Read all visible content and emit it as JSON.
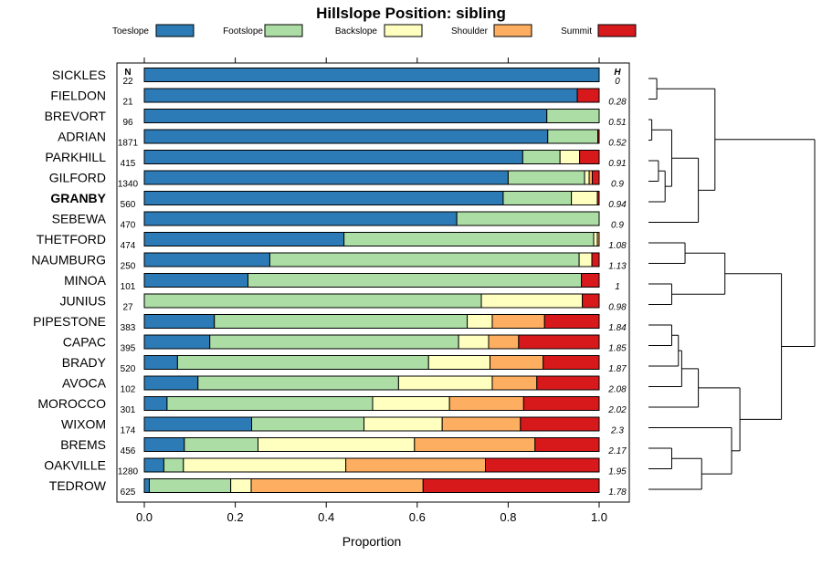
{
  "chart_data": {
    "type": "stacked-bar",
    "title": "Hillslope Position: sibling",
    "xlabel": "Proportion",
    "xlim": [
      0,
      1
    ],
    "xticks": [
      "0.0",
      "0.2",
      "0.4",
      "0.6",
      "0.8",
      "1.0"
    ],
    "n_header": "N",
    "h_header": "H",
    "legend": [
      {
        "name": "Toeslope",
        "color": "#2C7BB6"
      },
      {
        "name": "Footslope",
        "color": "#ABDDA4"
      },
      {
        "name": "Backslope",
        "color": "#FFFFBF"
      },
      {
        "name": "Shoulder",
        "color": "#FDAE61"
      },
      {
        "name": "Summit",
        "color": "#D7191C"
      }
    ],
    "rows": [
      {
        "name": "SICKLES",
        "n": "22",
        "h": "0",
        "bold": false,
        "values": [
          1.0,
          0.0,
          0.0,
          0.0,
          0.0
        ]
      },
      {
        "name": "FIELDON",
        "n": "21",
        "h": "0.28",
        "bold": false,
        "values": [
          0.952,
          0.0,
          0.0,
          0.0,
          0.048
        ]
      },
      {
        "name": "BREVORT",
        "n": "96",
        "h": "0.51",
        "bold": false,
        "values": [
          0.885,
          0.115,
          0.0,
          0.0,
          0.0
        ]
      },
      {
        "name": "ADRIAN",
        "n": "1871",
        "h": "0.52",
        "bold": false,
        "values": [
          0.887,
          0.11,
          0.0,
          0.0,
          0.003
        ]
      },
      {
        "name": "PARKHILL",
        "n": "415",
        "h": "0.91",
        "bold": false,
        "values": [
          0.832,
          0.082,
          0.043,
          0.0,
          0.043
        ]
      },
      {
        "name": "GILFORD",
        "n": "1340",
        "h": "0.9",
        "bold": false,
        "values": [
          0.8,
          0.168,
          0.01,
          0.007,
          0.015
        ]
      },
      {
        "name": "GRANBY",
        "n": "560",
        "h": "0.94",
        "bold": true,
        "values": [
          0.789,
          0.15,
          0.057,
          0.0,
          0.004
        ]
      },
      {
        "name": "SEBEWA",
        "n": "470",
        "h": "0.9",
        "bold": false,
        "values": [
          0.687,
          0.313,
          0.0,
          0.0,
          0.0
        ]
      },
      {
        "name": "THETFORD",
        "n": "474",
        "h": "1.08",
        "bold": false,
        "values": [
          0.439,
          0.549,
          0.008,
          0.004,
          0.0
        ]
      },
      {
        "name": "NAUMBURG",
        "n": "250",
        "h": "1.13",
        "bold": false,
        "values": [
          0.276,
          0.68,
          0.028,
          0.0,
          0.016
        ]
      },
      {
        "name": "MINOA",
        "n": "101",
        "h": "1",
        "bold": false,
        "values": [
          0.228,
          0.733,
          0.0,
          0.0,
          0.039
        ]
      },
      {
        "name": "JUNIUS",
        "n": "27",
        "h": "0.98",
        "bold": false,
        "values": [
          0.0,
          0.741,
          0.222,
          0.0,
          0.037
        ]
      },
      {
        "name": "PIPESTONE",
        "n": "383",
        "h": "1.84",
        "bold": false,
        "values": [
          0.154,
          0.556,
          0.055,
          0.115,
          0.12
        ]
      },
      {
        "name": "CAPAC",
        "n": "395",
        "h": "1.85",
        "bold": false,
        "values": [
          0.144,
          0.547,
          0.066,
          0.066,
          0.177
        ]
      },
      {
        "name": "BRADY",
        "n": "520",
        "h": "1.87",
        "bold": false,
        "values": [
          0.073,
          0.552,
          0.135,
          0.117,
          0.123
        ]
      },
      {
        "name": "AVOCA",
        "n": "102",
        "h": "2.08",
        "bold": false,
        "values": [
          0.118,
          0.441,
          0.206,
          0.098,
          0.137
        ]
      },
      {
        "name": "MOROCCO",
        "n": "301",
        "h": "2.02",
        "bold": false,
        "values": [
          0.05,
          0.452,
          0.169,
          0.163,
          0.166
        ]
      },
      {
        "name": "WIXOM",
        "n": "174",
        "h": "2.3",
        "bold": false,
        "values": [
          0.236,
          0.247,
          0.172,
          0.172,
          0.173
        ]
      },
      {
        "name": "BREMS",
        "n": "456",
        "h": "2.17",
        "bold": false,
        "values": [
          0.088,
          0.162,
          0.344,
          0.265,
          0.141
        ]
      },
      {
        "name": "OAKVILLE",
        "n": "1280",
        "h": "1.95",
        "bold": false,
        "values": [
          0.043,
          0.043,
          0.357,
          0.307,
          0.25
        ]
      },
      {
        "name": "TEDROW",
        "n": "625",
        "h": "1.78",
        "bold": false,
        "values": [
          0.011,
          0.179,
          0.045,
          0.378,
          0.387
        ]
      }
    ],
    "dendrogram": {
      "order": [
        "SICKLES",
        "FIELDON",
        "BREVORT",
        "ADRIAN",
        "PARKHILL",
        "GILFORD",
        "GRANBY",
        "SEBEWA",
        "THETFORD",
        "NAUMBURG",
        "MINOA",
        "JUNIUS",
        "PIPESTONE",
        "CAPAC",
        "BRADY",
        "AVOCA",
        "MOROCCO",
        "WIXOM",
        "BREMS",
        "OAKVILLE",
        "TEDROW"
      ],
      "merges": [
        [
          0,
          1,
          0.05
        ],
        [
          2,
          3,
          0.02
        ],
        [
          4,
          5,
          0.06
        ],
        [
          -3,
          6,
          0.1
        ],
        [
          -2,
          -4,
          0.14
        ],
        [
          -5,
          7,
          0.3
        ],
        [
          -1,
          -6,
          0.4
        ],
        [
          8,
          9,
          0.22
        ],
        [
          10,
          11,
          0.14
        ],
        [
          -8,
          -9,
          0.46
        ],
        [
          12,
          13,
          0.14
        ],
        [
          -11,
          14,
          0.18
        ],
        [
          -12,
          15,
          0.2
        ],
        [
          -13,
          16,
          0.3
        ],
        [
          18,
          19,
          0.14
        ],
        [
          -15,
          20,
          0.32
        ],
        [
          17,
          -16,
          0.5
        ],
        [
          -14,
          -17,
          0.55
        ],
        [
          -10,
          -18,
          0.8
        ],
        [
          -7,
          -19,
          1.0
        ]
      ]
    }
  }
}
